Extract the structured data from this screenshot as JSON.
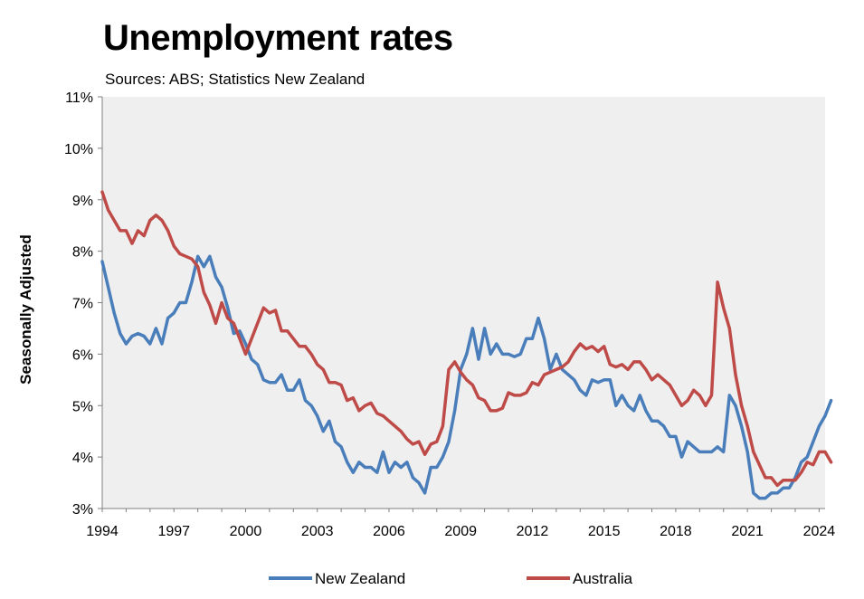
{
  "chart_data": {
    "type": "line",
    "title": "Unemployment rates",
    "subtitle": "Sources: ABS; Statistics New Zealand",
    "xlabel": "",
    "ylabel": "Seasonally Adjusted",
    "xlim": [
      1994,
      2024.25
    ],
    "ylim": [
      3,
      11
    ],
    "x_ticks": [
      "1994",
      "1997",
      "2000",
      "2003",
      "2006",
      "2009",
      "2012",
      "2015",
      "2018",
      "2021",
      "2024"
    ],
    "y_ticks": [
      "3%",
      "4%",
      "5%",
      "6%",
      "7%",
      "8%",
      "9%",
      "10%",
      "11%"
    ],
    "grid": false,
    "legend_position": "bottom",
    "series": [
      {
        "name": "New Zealand",
        "color": "#4a7ebb",
        "points": [
          [
            1994.0,
            7.8
          ],
          [
            1994.25,
            7.3
          ],
          [
            1994.5,
            6.8
          ],
          [
            1994.75,
            6.4
          ],
          [
            1995.0,
            6.2
          ],
          [
            1995.25,
            6.35
          ],
          [
            1995.5,
            6.4
          ],
          [
            1995.75,
            6.35
          ],
          [
            1996.0,
            6.2
          ],
          [
            1996.25,
            6.5
          ],
          [
            1996.5,
            6.2
          ],
          [
            1996.75,
            6.7
          ],
          [
            1997.0,
            6.8
          ],
          [
            1997.25,
            7.0
          ],
          [
            1997.5,
            7.0
          ],
          [
            1997.75,
            7.4
          ],
          [
            1998.0,
            7.9
          ],
          [
            1998.25,
            7.7
          ],
          [
            1998.5,
            7.9
          ],
          [
            1998.75,
            7.5
          ],
          [
            1999.0,
            7.3
          ],
          [
            1999.25,
            6.9
          ],
          [
            1999.5,
            6.4
          ],
          [
            1999.75,
            6.45
          ],
          [
            2000.0,
            6.2
          ],
          [
            2000.25,
            5.9
          ],
          [
            2000.5,
            5.8
          ],
          [
            2000.75,
            5.5
          ],
          [
            2001.0,
            5.45
          ],
          [
            2001.25,
            5.45
          ],
          [
            2001.5,
            5.6
          ],
          [
            2001.75,
            5.3
          ],
          [
            2002.0,
            5.3
          ],
          [
            2002.25,
            5.5
          ],
          [
            2002.5,
            5.1
          ],
          [
            2002.75,
            5.0
          ],
          [
            2003.0,
            4.8
          ],
          [
            2003.25,
            4.5
          ],
          [
            2003.5,
            4.7
          ],
          [
            2003.75,
            4.3
          ],
          [
            2004.0,
            4.2
          ],
          [
            2004.25,
            3.9
          ],
          [
            2004.5,
            3.7
          ],
          [
            2004.75,
            3.9
          ],
          [
            2005.0,
            3.8
          ],
          [
            2005.25,
            3.8
          ],
          [
            2005.5,
            3.7
          ],
          [
            2005.75,
            4.1
          ],
          [
            2006.0,
            3.7
          ],
          [
            2006.25,
            3.9
          ],
          [
            2006.5,
            3.8
          ],
          [
            2006.75,
            3.9
          ],
          [
            2007.0,
            3.6
          ],
          [
            2007.25,
            3.5
          ],
          [
            2007.5,
            3.3
          ],
          [
            2007.75,
            3.8
          ],
          [
            2008.0,
            3.8
          ],
          [
            2008.25,
            4.0
          ],
          [
            2008.5,
            4.3
          ],
          [
            2008.75,
            4.9
          ],
          [
            2009.0,
            5.7
          ],
          [
            2009.25,
            6.0
          ],
          [
            2009.5,
            6.5
          ],
          [
            2009.75,
            5.9
          ],
          [
            2010.0,
            6.5
          ],
          [
            2010.25,
            6.0
          ],
          [
            2010.5,
            6.2
          ],
          [
            2010.75,
            6.0
          ],
          [
            2011.0,
            6.0
          ],
          [
            2011.25,
            5.95
          ],
          [
            2011.5,
            6.0
          ],
          [
            2011.75,
            6.3
          ],
          [
            2012.0,
            6.3
          ],
          [
            2012.25,
            6.7
          ],
          [
            2012.5,
            6.3
          ],
          [
            2012.75,
            5.7
          ],
          [
            2013.0,
            6.0
          ],
          [
            2013.25,
            5.7
          ],
          [
            2013.5,
            5.6
          ],
          [
            2013.75,
            5.5
          ],
          [
            2014.0,
            5.3
          ],
          [
            2014.25,
            5.2
          ],
          [
            2014.5,
            5.5
          ],
          [
            2014.75,
            5.45
          ],
          [
            2015.0,
            5.5
          ],
          [
            2015.25,
            5.5
          ],
          [
            2015.5,
            5.0
          ],
          [
            2015.75,
            5.2
          ],
          [
            2016.0,
            5.0
          ],
          [
            2016.25,
            4.9
          ],
          [
            2016.5,
            5.2
          ],
          [
            2016.75,
            4.9
          ],
          [
            2017.0,
            4.7
          ],
          [
            2017.25,
            4.7
          ],
          [
            2017.5,
            4.6
          ],
          [
            2017.75,
            4.4
          ],
          [
            2018.0,
            4.4
          ],
          [
            2018.25,
            4.0
          ],
          [
            2018.5,
            4.3
          ],
          [
            2018.75,
            4.2
          ],
          [
            2019.0,
            4.1
          ],
          [
            2019.25,
            4.1
          ],
          [
            2019.5,
            4.1
          ],
          [
            2019.75,
            4.2
          ],
          [
            2020.0,
            4.1
          ],
          [
            2020.25,
            5.2
          ],
          [
            2020.5,
            5.0
          ],
          [
            2020.75,
            4.6
          ],
          [
            2021.0,
            4.1
          ],
          [
            2021.25,
            3.3
          ],
          [
            2021.5,
            3.2
          ],
          [
            2021.75,
            3.2
          ],
          [
            2022.0,
            3.3
          ],
          [
            2022.25,
            3.3
          ],
          [
            2022.5,
            3.4
          ],
          [
            2022.75,
            3.4
          ],
          [
            2023.0,
            3.6
          ],
          [
            2023.25,
            3.9
          ],
          [
            2023.5,
            4.0
          ],
          [
            2023.75,
            4.3
          ],
          [
            2024.0,
            4.6
          ],
          [
            2024.25,
            4.8
          ],
          [
            2024.5,
            5.1
          ]
        ]
      },
      {
        "name": "Australia",
        "color": "#be4b48",
        "points": [
          [
            1994.0,
            9.15
          ],
          [
            1994.25,
            8.8
          ],
          [
            1994.5,
            8.6
          ],
          [
            1994.75,
            8.4
          ],
          [
            1995.0,
            8.4
          ],
          [
            1995.25,
            8.15
          ],
          [
            1995.5,
            8.4
          ],
          [
            1995.75,
            8.3
          ],
          [
            1996.0,
            8.6
          ],
          [
            1996.25,
            8.7
          ],
          [
            1996.5,
            8.6
          ],
          [
            1996.75,
            8.4
          ],
          [
            1997.0,
            8.1
          ],
          [
            1997.25,
            7.95
          ],
          [
            1997.5,
            7.9
          ],
          [
            1997.75,
            7.85
          ],
          [
            1998.0,
            7.7
          ],
          [
            1998.25,
            7.2
          ],
          [
            1998.5,
            6.95
          ],
          [
            1998.75,
            6.6
          ],
          [
            1999.0,
            7.0
          ],
          [
            1999.25,
            6.7
          ],
          [
            1999.5,
            6.6
          ],
          [
            1999.75,
            6.3
          ],
          [
            2000.0,
            6.0
          ],
          [
            2000.25,
            6.3
          ],
          [
            2000.5,
            6.6
          ],
          [
            2000.75,
            6.9
          ],
          [
            2001.0,
            6.8
          ],
          [
            2001.25,
            6.85
          ],
          [
            2001.5,
            6.45
          ],
          [
            2001.75,
            6.45
          ],
          [
            2002.0,
            6.3
          ],
          [
            2002.25,
            6.15
          ],
          [
            2002.5,
            6.15
          ],
          [
            2002.75,
            6.0
          ],
          [
            2003.0,
            5.8
          ],
          [
            2003.25,
            5.7
          ],
          [
            2003.5,
            5.45
          ],
          [
            2003.75,
            5.45
          ],
          [
            2004.0,
            5.4
          ],
          [
            2004.25,
            5.1
          ],
          [
            2004.5,
            5.15
          ],
          [
            2004.75,
            4.9
          ],
          [
            2005.0,
            5.0
          ],
          [
            2005.25,
            5.05
          ],
          [
            2005.5,
            4.85
          ],
          [
            2005.75,
            4.8
          ],
          [
            2006.0,
            4.7
          ],
          [
            2006.25,
            4.6
          ],
          [
            2006.5,
            4.5
          ],
          [
            2006.75,
            4.35
          ],
          [
            2007.0,
            4.25
          ],
          [
            2007.25,
            4.3
          ],
          [
            2007.5,
            4.05
          ],
          [
            2007.75,
            4.25
          ],
          [
            2008.0,
            4.3
          ],
          [
            2008.25,
            4.6
          ],
          [
            2008.5,
            5.7
          ],
          [
            2008.75,
            5.85
          ],
          [
            2009.0,
            5.65
          ],
          [
            2009.25,
            5.5
          ],
          [
            2009.5,
            5.4
          ],
          [
            2009.75,
            5.15
          ],
          [
            2010.0,
            5.1
          ],
          [
            2010.25,
            4.9
          ],
          [
            2010.5,
            4.9
          ],
          [
            2010.75,
            4.95
          ],
          [
            2011.0,
            5.25
          ],
          [
            2011.25,
            5.2
          ],
          [
            2011.5,
            5.2
          ],
          [
            2011.75,
            5.25
          ],
          [
            2012.0,
            5.45
          ],
          [
            2012.25,
            5.4
          ],
          [
            2012.5,
            5.6
          ],
          [
            2012.75,
            5.65
          ],
          [
            2013.0,
            5.7
          ],
          [
            2013.25,
            5.75
          ],
          [
            2013.5,
            5.85
          ],
          [
            2013.75,
            6.05
          ],
          [
            2014.0,
            6.2
          ],
          [
            2014.25,
            6.1
          ],
          [
            2014.5,
            6.15
          ],
          [
            2014.75,
            6.05
          ],
          [
            2015.0,
            6.15
          ],
          [
            2015.25,
            5.8
          ],
          [
            2015.5,
            5.75
          ],
          [
            2015.75,
            5.8
          ],
          [
            2016.0,
            5.7
          ],
          [
            2016.25,
            5.85
          ],
          [
            2016.5,
            5.85
          ],
          [
            2016.75,
            5.7
          ],
          [
            2017.0,
            5.5
          ],
          [
            2017.25,
            5.6
          ],
          [
            2017.5,
            5.5
          ],
          [
            2017.75,
            5.4
          ],
          [
            2018.0,
            5.2
          ],
          [
            2018.25,
            5.0
          ],
          [
            2018.5,
            5.1
          ],
          [
            2018.75,
            5.3
          ],
          [
            2019.0,
            5.2
          ],
          [
            2019.25,
            5.0
          ],
          [
            2019.5,
            5.2
          ],
          [
            2019.75,
            7.4
          ],
          [
            2020.0,
            6.9
          ],
          [
            2020.25,
            6.5
          ],
          [
            2020.5,
            5.6
          ],
          [
            2020.75,
            5.0
          ],
          [
            2021.0,
            4.6
          ],
          [
            2021.25,
            4.1
          ],
          [
            2021.5,
            3.85
          ],
          [
            2021.75,
            3.6
          ],
          [
            2022.0,
            3.6
          ],
          [
            2022.25,
            3.45
          ],
          [
            2022.5,
            3.55
          ],
          [
            2022.75,
            3.55
          ],
          [
            2023.0,
            3.55
          ],
          [
            2023.25,
            3.7
          ],
          [
            2023.5,
            3.9
          ],
          [
            2023.75,
            3.85
          ],
          [
            2024.0,
            4.1
          ],
          [
            2024.25,
            4.1
          ],
          [
            2024.5,
            3.9
          ]
        ]
      }
    ]
  }
}
